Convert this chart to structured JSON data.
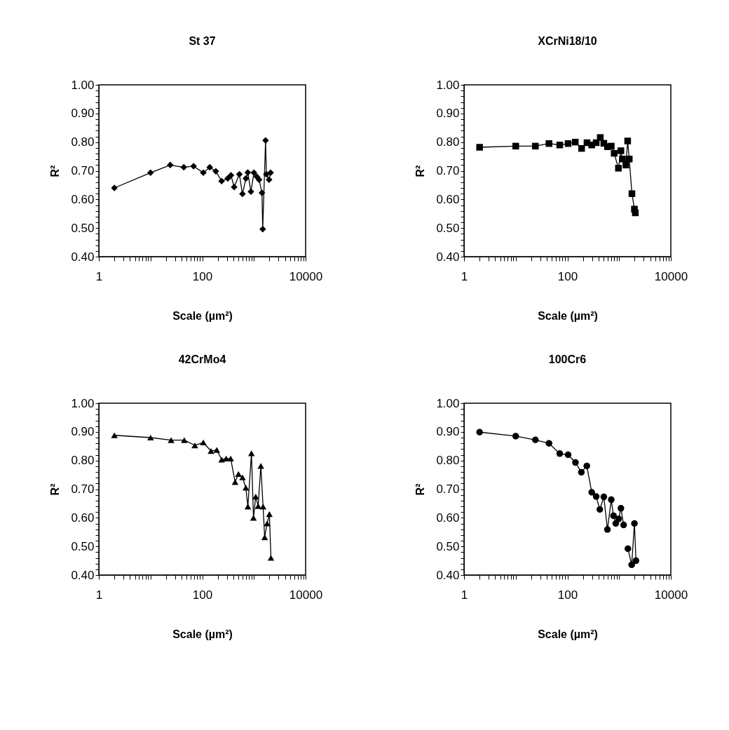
{
  "chart_data": [
    {
      "type": "line",
      "title": "St 37",
      "xlabel": "Scale (µm²)",
      "ylabel": "R²",
      "log": "x",
      "marker": "diamond",
      "line_style": "solid",
      "grid": false,
      "legend": false,
      "xlim": [
        1,
        10000
      ],
      "ylim": [
        0.4,
        1.0
      ],
      "xticks": [
        1,
        {
          "value": 2,
          "label": null
        },
        {
          "value": 3,
          "label": null
        },
        {
          "value": 4,
          "label": null
        },
        {
          "value": 5,
          "label": null
        },
        {
          "value": 6,
          "label": null
        },
        {
          "value": 7,
          "label": null
        },
        {
          "value": 8,
          "label": null
        },
        {
          "value": 9,
          "label": null
        },
        {
          "value": 10,
          "label": null
        },
        {
          "value": 20,
          "label": null
        },
        {
          "value": 30,
          "label": null
        },
        {
          "value": 40,
          "label": null
        },
        {
          "value": 50,
          "label": null
        },
        {
          "value": 60,
          "label": null
        },
        {
          "value": 70,
          "label": null
        },
        {
          "value": 80,
          "label": null
        },
        {
          "value": 90,
          "label": null
        },
        100,
        {
          "value": 200,
          "label": null
        },
        {
          "value": 300,
          "label": null
        },
        {
          "value": 400,
          "label": null
        },
        {
          "value": 500,
          "label": null
        },
        {
          "value": 600,
          "label": null
        },
        {
          "value": 700,
          "label": null
        },
        {
          "value": 800,
          "label": null
        },
        {
          "value": 900,
          "label": null
        },
        {
          "value": 1000,
          "label": null
        },
        {
          "value": 2000,
          "label": null
        },
        {
          "value": 3000,
          "label": null
        },
        {
          "value": 4000,
          "label": null
        },
        {
          "value": 5000,
          "label": null
        },
        {
          "value": 6000,
          "label": null
        },
        {
          "value": 7000,
          "label": null
        },
        {
          "value": 8000,
          "label": null
        },
        {
          "value": 9000,
          "label": null
        },
        10000
      ],
      "yticks": [
        {
          "value": 0.4,
          "label": "0.40"
        },
        {
          "value": 0.42,
          "label": null
        },
        {
          "value": 0.44,
          "label": null
        },
        {
          "value": 0.46,
          "label": null
        },
        {
          "value": 0.48,
          "label": null
        },
        {
          "value": 0.5,
          "label": "0.50"
        },
        {
          "value": 0.52,
          "label": null
        },
        {
          "value": 0.54,
          "label": null
        },
        {
          "value": 0.56,
          "label": null
        },
        {
          "value": 0.58,
          "label": null
        },
        {
          "value": 0.6,
          "label": "0.60"
        },
        {
          "value": 0.62,
          "label": null
        },
        {
          "value": 0.64,
          "label": null
        },
        {
          "value": 0.66,
          "label": null
        },
        {
          "value": 0.68,
          "label": null
        },
        {
          "value": 0.7,
          "label": "0.70"
        },
        {
          "value": 0.72,
          "label": null
        },
        {
          "value": 0.74,
          "label": null
        },
        {
          "value": 0.76,
          "label": null
        },
        {
          "value": 0.78,
          "label": null
        },
        {
          "value": 0.8,
          "label": "0.80"
        },
        {
          "value": 0.82,
          "label": null
        },
        {
          "value": 0.84,
          "label": null
        },
        {
          "value": 0.86,
          "label": null
        },
        {
          "value": 0.88,
          "label": null
        },
        {
          "value": 0.9,
          "label": "0.90"
        },
        {
          "value": 0.92,
          "label": null
        },
        {
          "value": 0.94,
          "label": null
        },
        {
          "value": 0.96,
          "label": null
        },
        {
          "value": 0.98,
          "label": null
        },
        {
          "value": 1.0,
          "label": "1.00"
        }
      ],
      "series": [
        {
          "color": "#000000",
          "x": [
            2,
            10,
            24,
            44,
            68,
            105,
            140,
            183,
            237,
            312,
            360,
            415,
            523,
            600,
            700,
            760,
            875,
            1000,
            1140,
            1260,
            1430,
            1480,
            1680,
            1740,
            1960,
            2100
          ],
          "values": [
            0.64,
            0.693,
            0.72,
            0.712,
            0.716,
            0.693,
            0.712,
            0.698,
            0.664,
            0.673,
            0.684,
            0.643,
            0.688,
            0.619,
            0.673,
            0.694,
            0.627,
            0.693,
            0.679,
            0.669,
            0.623,
            0.496,
            0.806,
            0.688,
            0.669,
            0.693
          ]
        }
      ]
    },
    {
      "type": "line",
      "title": "XCrNi18/10",
      "xlabel": "Scale (µm²)",
      "ylabel": "R²",
      "log": "x",
      "marker": "square",
      "line_style": "solid",
      "grid": false,
      "legend": false,
      "xlim": [
        1,
        10000
      ],
      "ylim": [
        0.4,
        1.0
      ],
      "xticks": [
        1,
        {
          "value": 2,
          "label": null
        },
        {
          "value": 3,
          "label": null
        },
        {
          "value": 4,
          "label": null
        },
        {
          "value": 5,
          "label": null
        },
        {
          "value": 6,
          "label": null
        },
        {
          "value": 7,
          "label": null
        },
        {
          "value": 8,
          "label": null
        },
        {
          "value": 9,
          "label": null
        },
        {
          "value": 10,
          "label": null
        },
        {
          "value": 20,
          "label": null
        },
        {
          "value": 30,
          "label": null
        },
        {
          "value": 40,
          "label": null
        },
        {
          "value": 50,
          "label": null
        },
        {
          "value": 60,
          "label": null
        },
        {
          "value": 70,
          "label": null
        },
        {
          "value": 80,
          "label": null
        },
        {
          "value": 90,
          "label": null
        },
        100,
        {
          "value": 200,
          "label": null
        },
        {
          "value": 300,
          "label": null
        },
        {
          "value": 400,
          "label": null
        },
        {
          "value": 500,
          "label": null
        },
        {
          "value": 600,
          "label": null
        },
        {
          "value": 700,
          "label": null
        },
        {
          "value": 800,
          "label": null
        },
        {
          "value": 900,
          "label": null
        },
        {
          "value": 1000,
          "label": null
        },
        {
          "value": 2000,
          "label": null
        },
        {
          "value": 3000,
          "label": null
        },
        {
          "value": 4000,
          "label": null
        },
        {
          "value": 5000,
          "label": null
        },
        {
          "value": 6000,
          "label": null
        },
        {
          "value": 7000,
          "label": null
        },
        {
          "value": 8000,
          "label": null
        },
        {
          "value": 9000,
          "label": null
        },
        10000
      ],
      "yticks": [
        {
          "value": 0.4,
          "label": "0.40"
        },
        {
          "value": 0.42,
          "label": null
        },
        {
          "value": 0.44,
          "label": null
        },
        {
          "value": 0.46,
          "label": null
        },
        {
          "value": 0.48,
          "label": null
        },
        {
          "value": 0.5,
          "label": "0.50"
        },
        {
          "value": 0.52,
          "label": null
        },
        {
          "value": 0.54,
          "label": null
        },
        {
          "value": 0.56,
          "label": null
        },
        {
          "value": 0.58,
          "label": null
        },
        {
          "value": 0.6,
          "label": "0.60"
        },
        {
          "value": 0.62,
          "label": null
        },
        {
          "value": 0.64,
          "label": null
        },
        {
          "value": 0.66,
          "label": null
        },
        {
          "value": 0.68,
          "label": null
        },
        {
          "value": 0.7,
          "label": "0.70"
        },
        {
          "value": 0.72,
          "label": null
        },
        {
          "value": 0.74,
          "label": null
        },
        {
          "value": 0.76,
          "label": null
        },
        {
          "value": 0.78,
          "label": null
        },
        {
          "value": 0.8,
          "label": "0.80"
        },
        {
          "value": 0.82,
          "label": null
        },
        {
          "value": 0.84,
          "label": null
        },
        {
          "value": 0.86,
          "label": null
        },
        {
          "value": 0.88,
          "label": null
        },
        {
          "value": 0.9,
          "label": "0.90"
        },
        {
          "value": 0.92,
          "label": null
        },
        {
          "value": 0.94,
          "label": null
        },
        {
          "value": 0.96,
          "label": null
        },
        {
          "value": 0.98,
          "label": null
        },
        {
          "value": 1.0,
          "label": "1.00"
        }
      ],
      "series": [
        {
          "color": "#000000",
          "x": [
            2,
            10,
            24,
            44,
            71,
            103,
            142,
            188,
            239,
            295,
            360,
            432,
            506,
            594,
            704,
            802,
            970,
            1083,
            1162,
            1350,
            1462,
            1570,
            1770,
            1977,
            2057
          ],
          "values": [
            0.782,
            0.786,
            0.786,
            0.795,
            0.79,
            0.795,
            0.8,
            0.778,
            0.798,
            0.79,
            0.798,
            0.816,
            0.796,
            0.784,
            0.786,
            0.761,
            0.709,
            0.77,
            0.741,
            0.72,
            0.804,
            0.741,
            0.62,
            0.566,
            0.553
          ]
        }
      ]
    },
    {
      "type": "line",
      "title": "42CrMo4",
      "xlabel": "Scale (µm²)",
      "ylabel": "R²",
      "log": "x",
      "marker": "triangle",
      "line_style": "solid",
      "grid": false,
      "legend": false,
      "xlim": [
        1,
        10000
      ],
      "ylim": [
        0.4,
        1.0
      ],
      "xticks": [
        1,
        {
          "value": 2,
          "label": null
        },
        {
          "value": 3,
          "label": null
        },
        {
          "value": 4,
          "label": null
        },
        {
          "value": 5,
          "label": null
        },
        {
          "value": 6,
          "label": null
        },
        {
          "value": 7,
          "label": null
        },
        {
          "value": 8,
          "label": null
        },
        {
          "value": 9,
          "label": null
        },
        {
          "value": 10,
          "label": null
        },
        {
          "value": 20,
          "label": null
        },
        {
          "value": 30,
          "label": null
        },
        {
          "value": 40,
          "label": null
        },
        {
          "value": 50,
          "label": null
        },
        {
          "value": 60,
          "label": null
        },
        {
          "value": 70,
          "label": null
        },
        {
          "value": 80,
          "label": null
        },
        {
          "value": 90,
          "label": null
        },
        100,
        {
          "value": 200,
          "label": null
        },
        {
          "value": 300,
          "label": null
        },
        {
          "value": 400,
          "label": null
        },
        {
          "value": 500,
          "label": null
        },
        {
          "value": 600,
          "label": null
        },
        {
          "value": 700,
          "label": null
        },
        {
          "value": 800,
          "label": null
        },
        {
          "value": 900,
          "label": null
        },
        {
          "value": 1000,
          "label": null
        },
        {
          "value": 2000,
          "label": null
        },
        {
          "value": 3000,
          "label": null
        },
        {
          "value": 4000,
          "label": null
        },
        {
          "value": 5000,
          "label": null
        },
        {
          "value": 6000,
          "label": null
        },
        {
          "value": 7000,
          "label": null
        },
        {
          "value": 8000,
          "label": null
        },
        {
          "value": 9000,
          "label": null
        },
        10000
      ],
      "yticks": [
        {
          "value": 0.4,
          "label": "0.40"
        },
        {
          "value": 0.42,
          "label": null
        },
        {
          "value": 0.44,
          "label": null
        },
        {
          "value": 0.46,
          "label": null
        },
        {
          "value": 0.48,
          "label": null
        },
        {
          "value": 0.5,
          "label": "0.50"
        },
        {
          "value": 0.52,
          "label": null
        },
        {
          "value": 0.54,
          "label": null
        },
        {
          "value": 0.56,
          "label": null
        },
        {
          "value": 0.58,
          "label": null
        },
        {
          "value": 0.6,
          "label": "0.60"
        },
        {
          "value": 0.62,
          "label": null
        },
        {
          "value": 0.64,
          "label": null
        },
        {
          "value": 0.66,
          "label": null
        },
        {
          "value": 0.68,
          "label": null
        },
        {
          "value": 0.7,
          "label": "0.70"
        },
        {
          "value": 0.72,
          "label": null
        },
        {
          "value": 0.74,
          "label": null
        },
        {
          "value": 0.76,
          "label": null
        },
        {
          "value": 0.78,
          "label": null
        },
        {
          "value": 0.8,
          "label": "0.80"
        },
        {
          "value": 0.82,
          "label": null
        },
        {
          "value": 0.84,
          "label": null
        },
        {
          "value": 0.86,
          "label": null
        },
        {
          "value": 0.88,
          "label": null
        },
        {
          "value": 0.9,
          "label": "0.90"
        },
        {
          "value": 0.92,
          "label": null
        },
        {
          "value": 0.94,
          "label": null
        },
        {
          "value": 0.96,
          "label": null
        },
        {
          "value": 0.98,
          "label": null
        },
        {
          "value": 1.0,
          "label": "1.00"
        }
      ],
      "series": [
        {
          "color": "#000000",
          "x": [
            2,
            10,
            25,
            45,
            72,
            105,
            148,
            191,
            238,
            290,
            355,
            433,
            502,
            601,
            698,
            764,
            896,
            980,
            1083,
            1208,
            1361,
            1503,
            1614,
            1800,
            1990,
            2135
          ],
          "values": [
            0.888,
            0.88,
            0.871,
            0.871,
            0.853,
            0.863,
            0.833,
            0.837,
            0.803,
            0.807,
            0.807,
            0.725,
            0.753,
            0.741,
            0.705,
            0.639,
            0.825,
            0.6,
            0.674,
            0.641,
            0.781,
            0.639,
            0.532,
            0.58,
            0.613,
            0.46
          ]
        }
      ]
    },
    {
      "type": "line",
      "title": "100Cr6",
      "xlabel": "Scale (µm²)",
      "ylabel": "R²",
      "log": "x",
      "marker": "circle",
      "line_style": "solid",
      "grid": false,
      "legend": false,
      "xlim": [
        1,
        10000
      ],
      "ylim": [
        0.4,
        1.0
      ],
      "xticks": [
        1,
        {
          "value": 2,
          "label": null
        },
        {
          "value": 3,
          "label": null
        },
        {
          "value": 4,
          "label": null
        },
        {
          "value": 5,
          "label": null
        },
        {
          "value": 6,
          "label": null
        },
        {
          "value": 7,
          "label": null
        },
        {
          "value": 8,
          "label": null
        },
        {
          "value": 9,
          "label": null
        },
        {
          "value": 10,
          "label": null
        },
        {
          "value": 20,
          "label": null
        },
        {
          "value": 30,
          "label": null
        },
        {
          "value": 40,
          "label": null
        },
        {
          "value": 50,
          "label": null
        },
        {
          "value": 60,
          "label": null
        },
        {
          "value": 70,
          "label": null
        },
        {
          "value": 80,
          "label": null
        },
        {
          "value": 90,
          "label": null
        },
        100,
        {
          "value": 200,
          "label": null
        },
        {
          "value": 300,
          "label": null
        },
        {
          "value": 400,
          "label": null
        },
        {
          "value": 500,
          "label": null
        },
        {
          "value": 600,
          "label": null
        },
        {
          "value": 700,
          "label": null
        },
        {
          "value": 800,
          "label": null
        },
        {
          "value": 900,
          "label": null
        },
        {
          "value": 1000,
          "label": null
        },
        {
          "value": 2000,
          "label": null
        },
        {
          "value": 3000,
          "label": null
        },
        {
          "value": 4000,
          "label": null
        },
        {
          "value": 5000,
          "label": null
        },
        {
          "value": 6000,
          "label": null
        },
        {
          "value": 7000,
          "label": null
        },
        {
          "value": 8000,
          "label": null
        },
        {
          "value": 9000,
          "label": null
        },
        10000
      ],
      "yticks": [
        {
          "value": 0.4,
          "label": "0.40"
        },
        {
          "value": 0.42,
          "label": null
        },
        {
          "value": 0.44,
          "label": null
        },
        {
          "value": 0.46,
          "label": null
        },
        {
          "value": 0.48,
          "label": null
        },
        {
          "value": 0.5,
          "label": "0.50"
        },
        {
          "value": 0.52,
          "label": null
        },
        {
          "value": 0.54,
          "label": null
        },
        {
          "value": 0.56,
          "label": null
        },
        {
          "value": 0.58,
          "label": null
        },
        {
          "value": 0.6,
          "label": "0.60"
        },
        {
          "value": 0.62,
          "label": null
        },
        {
          "value": 0.64,
          "label": null
        },
        {
          "value": 0.66,
          "label": null
        },
        {
          "value": 0.68,
          "label": null
        },
        {
          "value": 0.7,
          "label": "0.70"
        },
        {
          "value": 0.72,
          "label": null
        },
        {
          "value": 0.74,
          "label": null
        },
        {
          "value": 0.76,
          "label": null
        },
        {
          "value": 0.78,
          "label": null
        },
        {
          "value": 0.8,
          "label": "0.80"
        },
        {
          "value": 0.82,
          "label": null
        },
        {
          "value": 0.84,
          "label": null
        },
        {
          "value": 0.86,
          "label": null
        },
        {
          "value": 0.88,
          "label": null
        },
        {
          "value": 0.9,
          "label": "0.90"
        },
        {
          "value": 0.92,
          "label": null
        },
        {
          "value": 0.94,
          "label": null
        },
        {
          "value": 0.96,
          "label": null
        },
        {
          "value": 0.98,
          "label": null
        },
        {
          "value": 1.0,
          "label": "1.00"
        }
      ],
      "series": [
        {
          "color": "#000000",
          "x": [
            2,
            10,
            24,
            44,
            71,
            103,
            143,
            186,
            237,
            295,
            360,
            423,
            506,
            594,
            704,
            778,
            861,
            980,
            1083,
            1222,
            1350,
            1479,
            1750,
            1977,
            2118
          ],
          "values": [
            0.899,
            0.885,
            0.872,
            0.86,
            0.824,
            0.82,
            0.793,
            0.759,
            0.781,
            0.689,
            0.674,
            0.629,
            0.673,
            0.559,
            0.663,
            0.607,
            0.58,
            0.596,
            0.633,
            0.575,
            null,
            0.492,
            0.436,
            0.58,
            0.45
          ]
        }
      ]
    }
  ]
}
